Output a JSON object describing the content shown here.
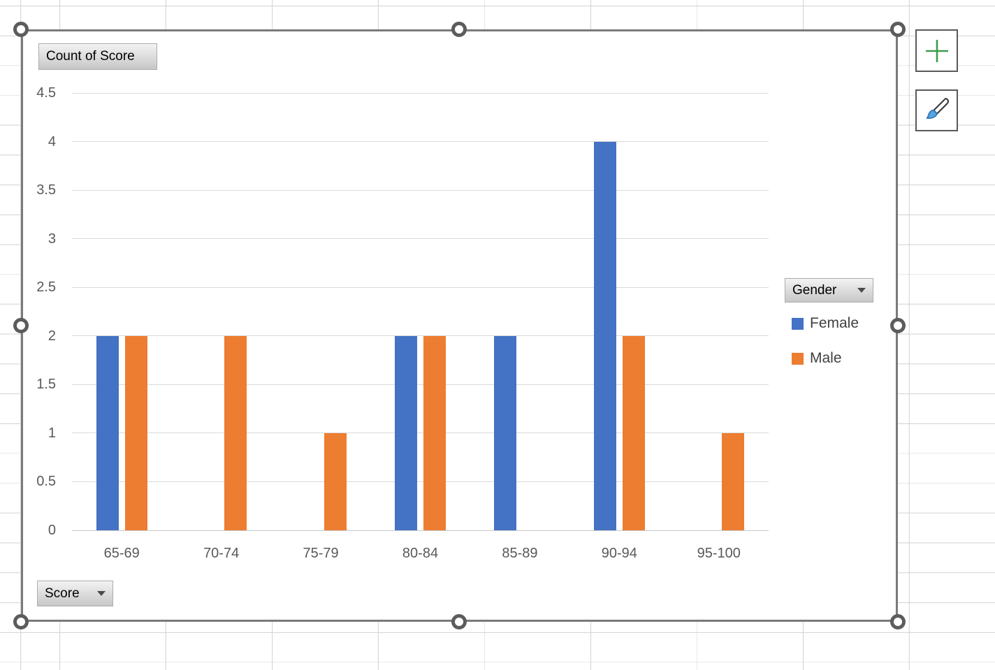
{
  "chart_frame": {
    "value_field_button": "Count of Score",
    "axis_field_button": "Score",
    "legend_field_button": "Gender"
  },
  "side_toolbar": {
    "chart_elements_button": {
      "icon": "plus-icon"
    },
    "chart_styles_button": {
      "icon": "paintbrush-icon"
    }
  },
  "chart_data": {
    "type": "bar",
    "title": "Count of Score",
    "categories": [
      "65-69",
      "70-74",
      "75-79",
      "80-84",
      "85-89",
      "90-94",
      "95-100"
    ],
    "series": [
      {
        "name": "Female",
        "color": "#4472C4",
        "values": [
          2,
          0,
          0,
          2,
          2,
          4,
          0
        ]
      },
      {
        "name": "Male",
        "color": "#ED7D31",
        "values": [
          2,
          2,
          1,
          2,
          0,
          2,
          1
        ]
      }
    ],
    "xlabel": "Score",
    "ylabel": "Count of Score",
    "ylim": [
      0,
      4.5
    ],
    "yticks": [
      0,
      0.5,
      1,
      1.5,
      2,
      2.5,
      3,
      3.5,
      4,
      4.5
    ],
    "grid": true,
    "legend_title": "Gender",
    "legend_position": "right"
  },
  "colors": {
    "series_female": "#4472C4",
    "series_male": "#ED7D31",
    "axis_text": "#595959",
    "gridline": "#DADADA",
    "selection_gray": "#5C5C5C",
    "plus_green": "#3E9B4F",
    "brush_blue": "#55A5DE"
  }
}
